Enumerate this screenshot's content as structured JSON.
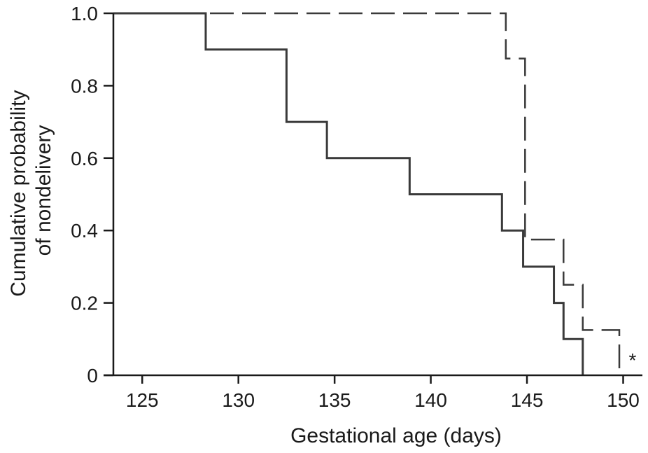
{
  "chart_data": {
    "type": "line",
    "step": true,
    "xlabel": "Gestational age (days)",
    "ylabel": [
      "Cumulative probability",
      "of nondelivery"
    ],
    "xlim": [
      123.5,
      151
    ],
    "ylim": [
      0,
      1.0
    ],
    "x_ticks": [
      125,
      130,
      135,
      140,
      145,
      150
    ],
    "x_tick_labels": [
      "125",
      "130",
      "135",
      "140",
      "145",
      "150"
    ],
    "y_ticks": [
      0,
      0.2,
      0.4,
      0.6,
      0.8,
      1.0
    ],
    "y_tick_labels": [
      "0",
      "0.2",
      "0.4",
      "0.6",
      "0.8",
      "1.0"
    ],
    "grid": false,
    "annotation": "*",
    "series": [
      {
        "style": "solid",
        "color": "#3a3a3a",
        "x": [
          123.5,
          128.3,
          132.5,
          134.6,
          138.9,
          143.7,
          144.8,
          146.4,
          146.9,
          147.9
        ],
        "y": [
          1.0,
          0.9,
          0.7,
          0.6,
          0.5,
          0.4,
          0.3,
          0.2,
          0.1,
          0.0
        ]
      },
      {
        "style": "dashed",
        "color": "#3a3a3a",
        "x": [
          123.5,
          143.9,
          144.9,
          146.9,
          147.9,
          149.8
        ],
        "y": [
          1.0,
          0.875,
          0.375,
          0.25,
          0.125,
          0.0
        ]
      }
    ]
  }
}
